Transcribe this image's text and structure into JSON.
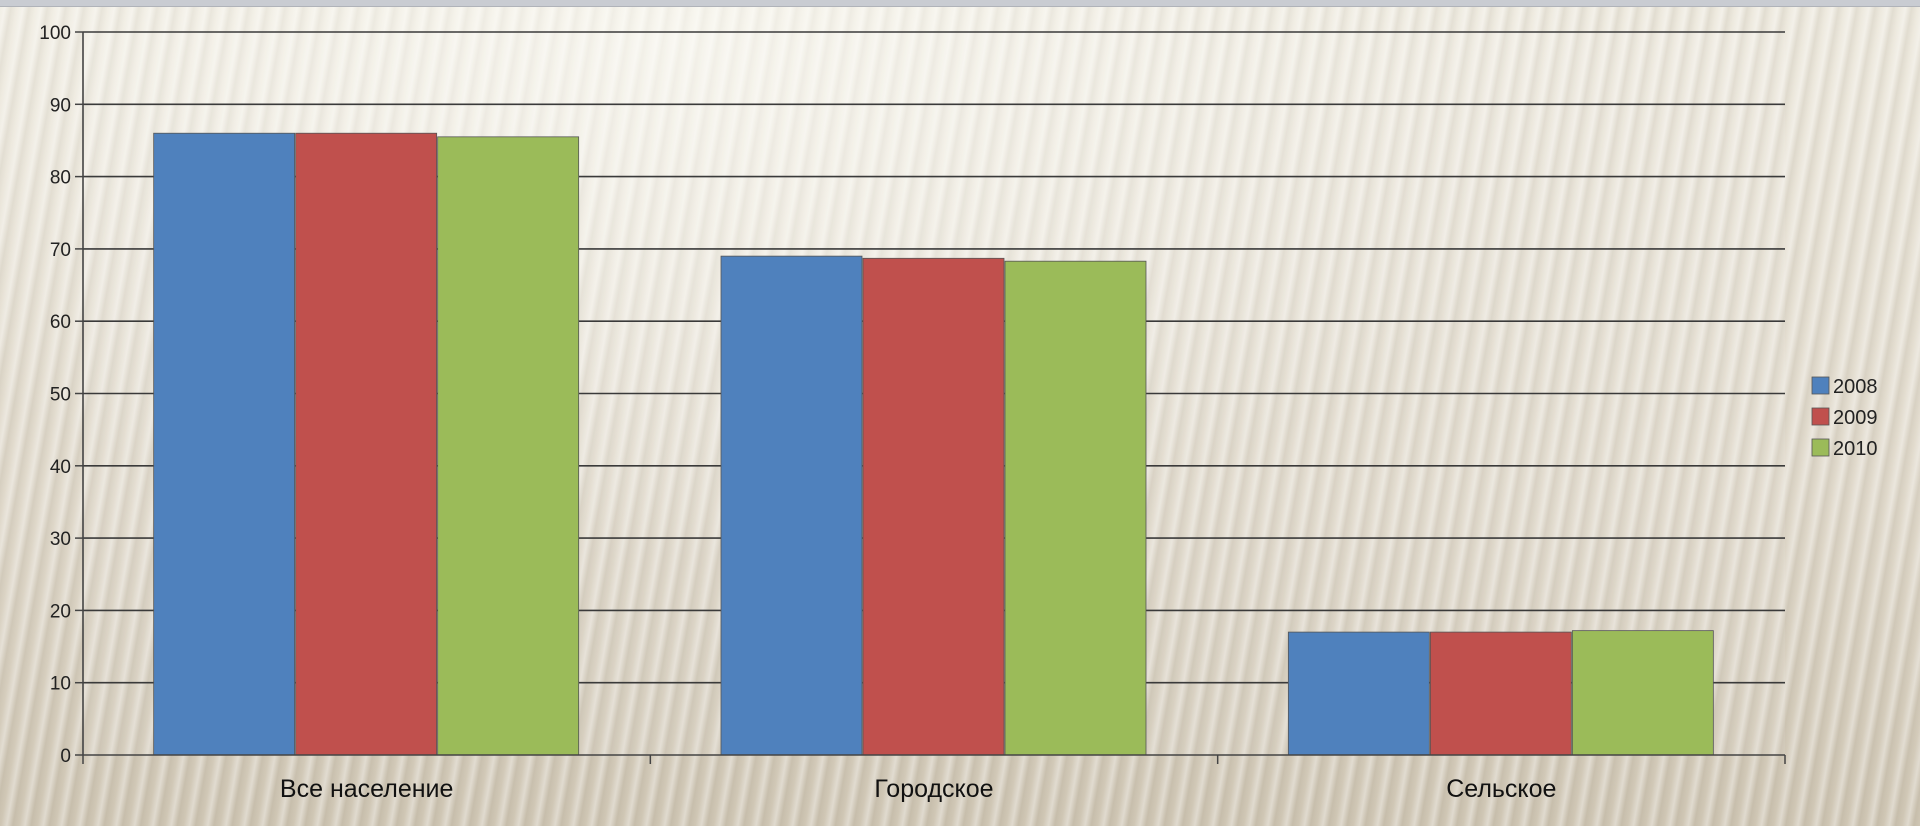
{
  "chart_data": {
    "type": "bar",
    "categories": [
      "Все население",
      "Городское",
      "Сельское"
    ],
    "series": [
      {
        "name": "2008",
        "color": "#4f81bd",
        "values": [
          86,
          69,
          17
        ]
      },
      {
        "name": "2009",
        "color": "#c0504d",
        "values": [
          86,
          68.7,
          17
        ]
      },
      {
        "name": "2010",
        "color": "#9bbb59",
        "values": [
          85.5,
          68.3,
          17.2
        ]
      }
    ],
    "ylim": [
      0,
      100
    ],
    "yticks": [
      0,
      10,
      20,
      30,
      40,
      50,
      60,
      70,
      80,
      90,
      100
    ],
    "grid": true,
    "legend_position": "right"
  }
}
